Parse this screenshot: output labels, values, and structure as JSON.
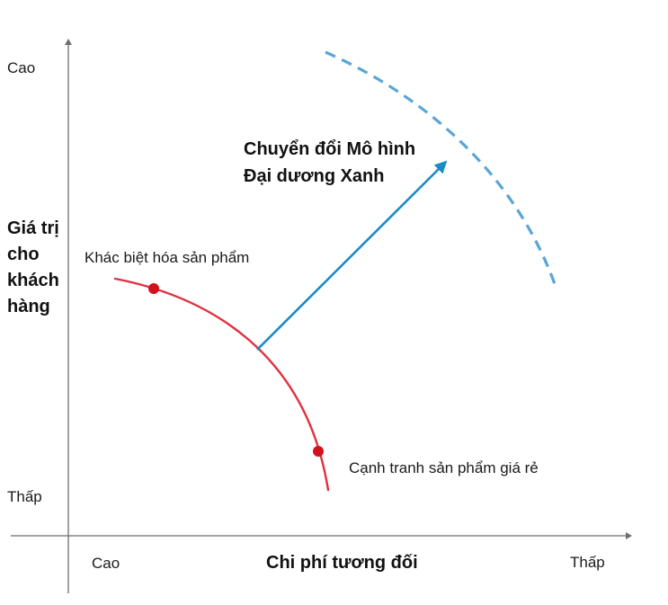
{
  "y_axis": {
    "title_lines": [
      "Giá trị",
      "cho",
      "khách",
      "hàng"
    ],
    "high_label": "Cao",
    "low_label": "Thấp"
  },
  "x_axis": {
    "title": "Chi phí tương đối",
    "left_label": "Cao",
    "right_label": "Thấp"
  },
  "curve_labels": {
    "differentiation": "Khác biệt hóa sản phẩm",
    "low_cost": "Cạnh tranh sản phẩm giá rẻ"
  },
  "shift": {
    "lines": [
      "Chuyển đổi Mô hình",
      "Đại dương Xanh"
    ]
  },
  "colors": {
    "axis": "#6e6e6e",
    "current_curve": "#e0313f",
    "point": "#d2111c",
    "arrow": "#1b8bc4",
    "new_curve": "#5aa5d5"
  }
}
